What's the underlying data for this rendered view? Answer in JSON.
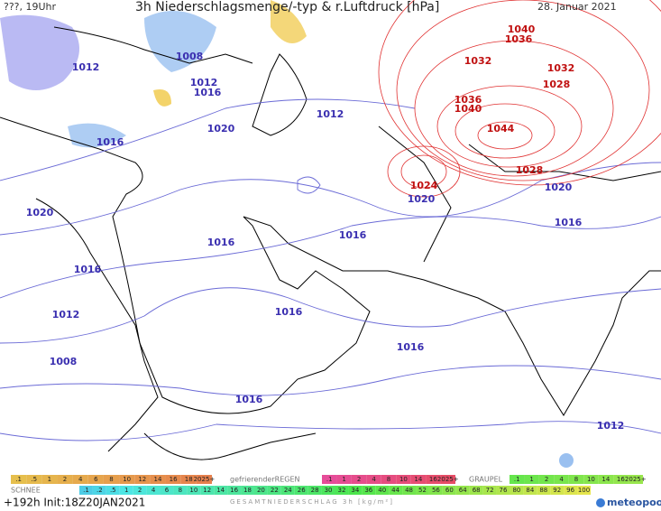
{
  "header": {
    "left": "???, 19Uhr",
    "title": "3h Niederschlagsmenge/-typ & r.Luftdruck [hPa]",
    "date": "28. Januar 2021"
  },
  "isobar_labels": [
    "1012",
    "1008",
    "1012",
    "1016",
    "1016",
    "1020",
    "1012",
    "1020",
    "1020",
    "1016",
    "1020",
    "1016",
    "1016",
    "1016",
    "1012",
    "1016",
    "1016",
    "1008",
    "1016",
    "1012"
  ],
  "high_pressure_labels": [
    "1032",
    "1040",
    "1036",
    "1032",
    "1028",
    "1036",
    "1040",
    "1044",
    "1028",
    "1024"
  ],
  "legend": {
    "snow_label": "SCHNEE",
    "snow_scale": [
      ".1",
      ".5",
      "1",
      "2",
      "4",
      "6",
      "8",
      "10",
      "12",
      "14",
      "16",
      "18",
      "2025+"
    ],
    "freezing_rain_label": "gefrierenderREGEN",
    "freezing_rain_scale": [
      ".1",
      "1",
      "2",
      "4",
      "8",
      "10",
      "14",
      "16",
      "2025+"
    ],
    "graupel_label": "GRAUPEL",
    "graupel_scale": [
      ".1",
      "1",
      "2",
      "4",
      "8",
      "10",
      "14",
      "16",
      "2025+"
    ],
    "total_scale": [
      ".1",
      ".2",
      ".5",
      "1",
      "2",
      "4",
      "6",
      "8",
      "10",
      "12",
      "14",
      "16",
      "18",
      "20",
      "22",
      "24",
      "26",
      "28",
      "30",
      "32",
      "34",
      "36",
      "40",
      "44",
      "48",
      "52",
      "56",
      "60",
      "64",
      "68",
      "72",
      "76",
      "80",
      "84",
      "88",
      "92",
      "96",
      "100"
    ],
    "total_label": "GESAMTNIEDERSCHLAG 3h [kg/m²]"
  },
  "footer": {
    "run": "+192h Init:18Z20JAN2021",
    "brand": "meteopool.org"
  }
}
